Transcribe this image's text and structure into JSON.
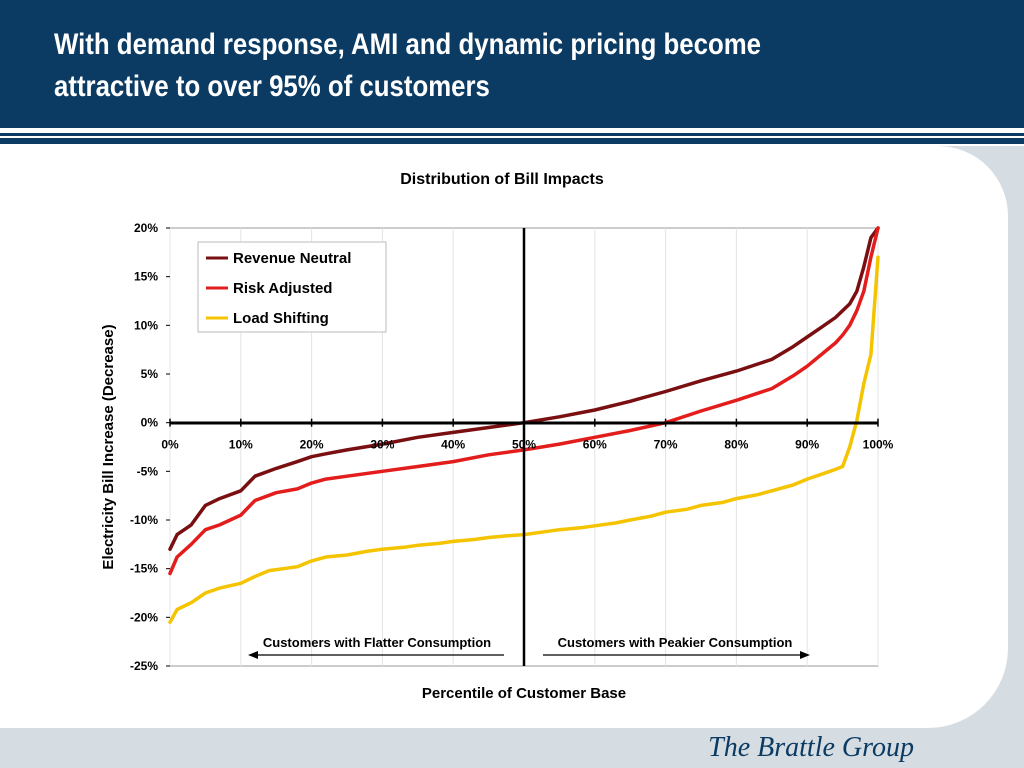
{
  "slide": {
    "title": "With demand response, AMI and dynamic pricing become attractive to over 95% of customers",
    "brand": "The Brattle Group",
    "colors": {
      "header": "#0b3a63",
      "background": "#d6dde2"
    }
  },
  "chart_data": {
    "type": "line",
    "title": "Distribution of Bill Impacts",
    "xlabel": "Percentile of Customer Base",
    "ylabel": "Electricity Bill Increase (Decrease)",
    "xlim": [
      0,
      100
    ],
    "ylim": [
      -25,
      20
    ],
    "x_ticks": [
      "0%",
      "10%",
      "20%",
      "30%",
      "40%",
      "50%",
      "60%",
      "70%",
      "80%",
      "90%",
      "100%"
    ],
    "y_ticks": [
      "20%",
      "15%",
      "10%",
      "5%",
      "0%",
      "-5%",
      "-10%",
      "-15%",
      "-20%",
      "-25%"
    ],
    "grid": "vertical",
    "legend_position": "top-left",
    "annotations": {
      "left_arrow": "Customers with Flatter Consumption",
      "right_arrow": "Customers with Peakier Consumption"
    },
    "reference_lines": {
      "x": 50,
      "y": 0
    },
    "series": [
      {
        "name": "Revenue Neutral",
        "color": "#7a0f12",
        "x": [
          0,
          1,
          3,
          5,
          7,
          10,
          12,
          15,
          18,
          20,
          22,
          25,
          30,
          35,
          40,
          45,
          50,
          55,
          60,
          65,
          70,
          75,
          80,
          85,
          88,
          90,
          92,
          94,
          95,
          96,
          97,
          98,
          99,
          100
        ],
        "y": [
          -13,
          -11.5,
          -10.5,
          -8.5,
          -7.8,
          -7.0,
          -5.5,
          -4.7,
          -4.0,
          -3.5,
          -3.2,
          -2.8,
          -2.2,
          -1.5,
          -1.0,
          -0.5,
          0,
          0.6,
          1.3,
          2.2,
          3.2,
          4.3,
          5.3,
          6.5,
          7.8,
          8.8,
          9.8,
          10.8,
          11.5,
          12.2,
          13.5,
          16.0,
          19.0,
          20.0
        ]
      },
      {
        "name": "Risk Adjusted",
        "color": "#e31c1c",
        "x": [
          0,
          1,
          3,
          5,
          7,
          10,
          12,
          15,
          18,
          20,
          22,
          25,
          30,
          35,
          40,
          45,
          50,
          55,
          60,
          65,
          70,
          75,
          80,
          85,
          88,
          90,
          92,
          94,
          95,
          96,
          97,
          98,
          99,
          100
        ],
        "y": [
          -15.5,
          -13.8,
          -12.5,
          -11.0,
          -10.5,
          -9.5,
          -8.0,
          -7.2,
          -6.8,
          -6.2,
          -5.8,
          -5.5,
          -5.0,
          -4.5,
          -4.0,
          -3.3,
          -2.8,
          -2.2,
          -1.5,
          -0.8,
          0,
          1.2,
          2.3,
          3.5,
          4.8,
          5.8,
          7.0,
          8.2,
          9.0,
          10.0,
          11.5,
          13.5,
          17.0,
          20.0
        ]
      },
      {
        "name": "Load Shifting",
        "color": "#f5c400",
        "x": [
          0,
          1,
          3,
          5,
          7,
          10,
          12,
          14,
          16,
          18,
          20,
          22,
          25,
          28,
          30,
          33,
          35,
          38,
          40,
          43,
          45,
          48,
          50,
          53,
          55,
          58,
          60,
          63,
          65,
          68,
          70,
          73,
          75,
          78,
          80,
          83,
          85,
          88,
          90,
          92,
          94,
          95,
          96,
          97,
          98,
          99,
          100
        ],
        "y": [
          -20.5,
          -19.2,
          -18.5,
          -17.5,
          -17.0,
          -16.5,
          -15.8,
          -15.2,
          -15.0,
          -14.8,
          -14.2,
          -13.8,
          -13.6,
          -13.2,
          -13.0,
          -12.8,
          -12.6,
          -12.4,
          -12.2,
          -12.0,
          -11.8,
          -11.6,
          -11.5,
          -11.2,
          -11.0,
          -10.8,
          -10.6,
          -10.3,
          -10.0,
          -9.6,
          -9.2,
          -8.9,
          -8.5,
          -8.2,
          -7.8,
          -7.4,
          -7.0,
          -6.4,
          -5.8,
          -5.3,
          -4.8,
          -4.5,
          -2.5,
          0.2,
          4.0,
          7.0,
          17.0
        ]
      }
    ]
  }
}
